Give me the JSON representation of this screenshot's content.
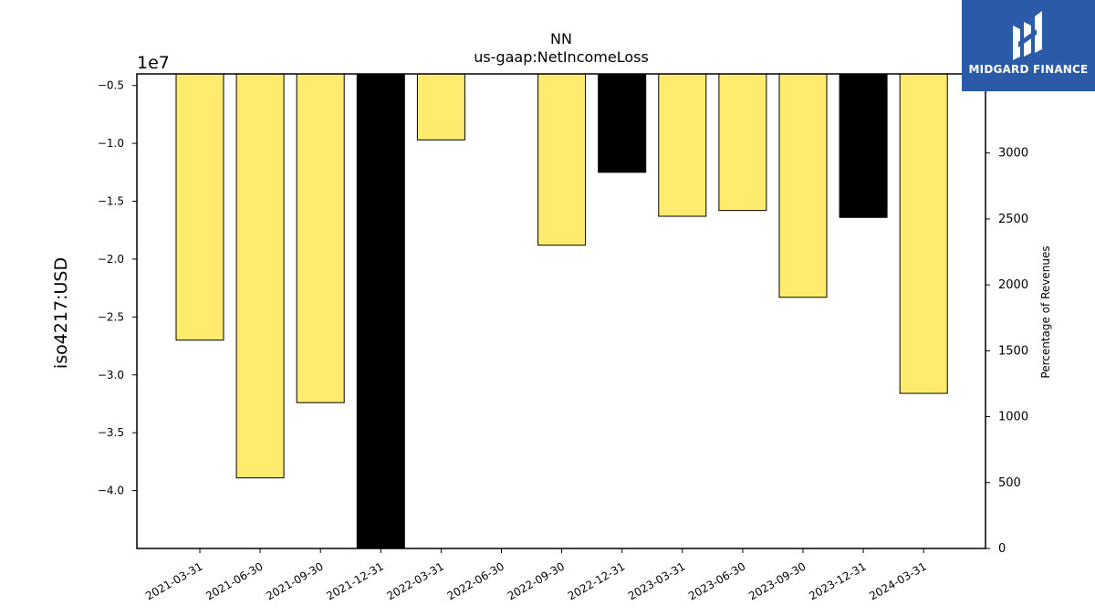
{
  "chart_data": {
    "type": "bar",
    "title": "NN",
    "subtitle": "us-gaap:NetIncomeLoss",
    "ylabel": "iso4217:USD",
    "y_offset_label": "1e7",
    "y2label": "Percentage of Revenues",
    "categories": [
      "2021-03-31",
      "2021-06-30",
      "2021-09-30",
      "2021-12-31",
      "2022-03-31",
      "2022-06-30",
      "2022-09-30",
      "2022-12-31",
      "2023-03-31",
      "2023-06-30",
      "2023-09-30",
      "2023-12-31",
      "2024-03-31"
    ],
    "values": [
      -2.7,
      -3.89,
      -3.24,
      -4.5,
      -0.97,
      null,
      -1.88,
      -1.25,
      -1.63,
      -1.58,
      -2.33,
      -1.64,
      -3.16
    ],
    "values_units": "1e7 USD",
    "bar_colors": [
      "#ffec6e",
      "#ffec6e",
      "#ffec6e",
      "#000000",
      "#ffec6e",
      null,
      "#ffec6e",
      "#000000",
      "#ffec6e",
      "#ffec6e",
      "#ffec6e",
      "#000000",
      "#ffec6e"
    ],
    "ylim": [
      -4.5,
      -0.4
    ],
    "yticks": [
      -0.5,
      -1.0,
      -1.5,
      -2.0,
      -2.5,
      -3.0,
      -3.5,
      -4.0
    ],
    "ytick_labels": [
      "−0.5",
      "−1.0",
      "−1.5",
      "−2.0",
      "−2.5",
      "−3.0",
      "−3.5",
      "−4.0"
    ],
    "y2lim": [
      0,
      3600
    ],
    "y2ticks": [
      0,
      500,
      1000,
      1500,
      2000,
      2500,
      3000
    ],
    "y2tick_labels": [
      "0",
      "500",
      "1000",
      "1500",
      "2000",
      "2500",
      "3000"
    ],
    "grid": false,
    "legend": "none"
  },
  "logo": {
    "text": "MIDGARD FINANCE"
  }
}
